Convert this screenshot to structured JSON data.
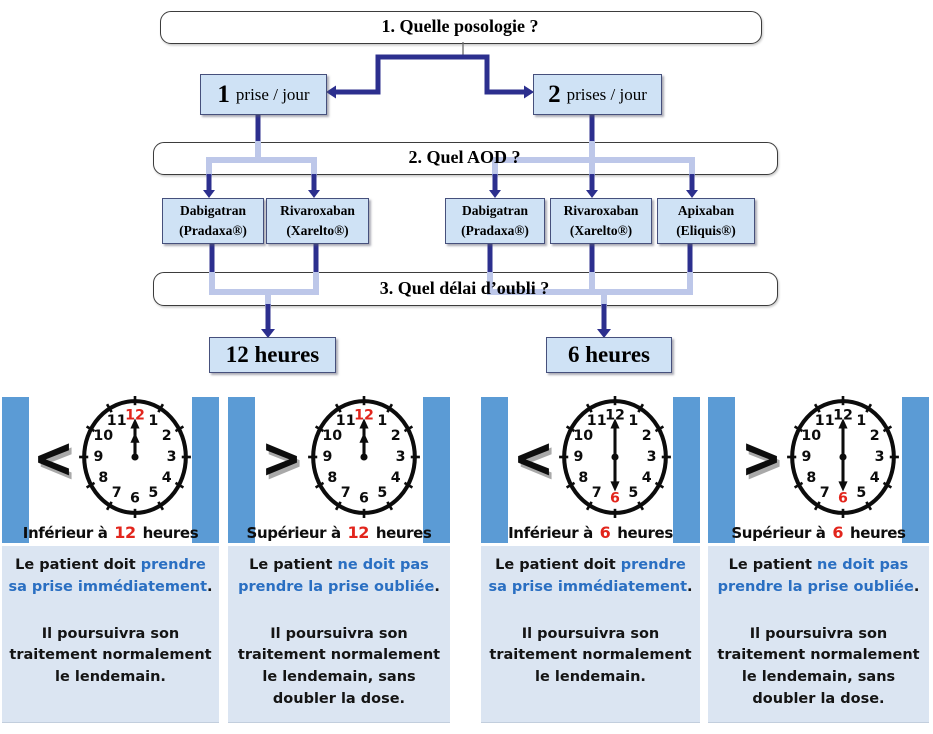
{
  "flowchart": {
    "q1": "1. Quelle posologie ?",
    "q2": "2. Quel AOD ?",
    "q3": "3. Quel délai d’oubli ?",
    "dose_left": {
      "num": "1",
      "rest": "prise / jour"
    },
    "dose_right": {
      "num": "2",
      "rest": "prises / jour"
    },
    "drugs": [
      {
        "line1": "Dabigatran",
        "line2": "(Pradaxa®)"
      },
      {
        "line1": "Rivaroxaban",
        "line2": "(Xarelto®)"
      },
      {
        "line1": "Dabigatran",
        "line2": "(Pradaxa®)"
      },
      {
        "line1": "Rivaroxaban",
        "line2": "(Xarelto®)"
      },
      {
        "line1": "Apixaban",
        "line2": "(Eliquis®)"
      }
    ],
    "result_left": "12 heures",
    "result_right": "6 heures"
  },
  "clock_numbers": [
    "12",
    "1",
    "2",
    "3",
    "4",
    "5",
    "6",
    "7",
    "8",
    "9",
    "10",
    "11"
  ],
  "panels": [
    {
      "symbol": "<",
      "clock": {
        "red": "12",
        "hands": "both-up"
      },
      "caption": {
        "prefix": "Inférieur à",
        "value": "12",
        "suffix": "heures"
      },
      "advice": {
        "lead": "Le patient doit",
        "highlight": "prendre sa prise immédiatement",
        "period": "."
      },
      "followup": "Il poursuivra son traitement normalement le lendemain."
    },
    {
      "symbol": ">",
      "clock": {
        "red": "12",
        "hands": "both-up"
      },
      "caption": {
        "prefix": "Supérieur à",
        "value": "12",
        "suffix": "heures"
      },
      "advice": {
        "lead": "Le patient",
        "highlight": "ne doit pas prendre la prise oubliée",
        "period": "."
      },
      "followup": "Il poursuivra son traitement normalement le lendemain, sans doubler la dose."
    },
    {
      "symbol": "<",
      "clock": {
        "red": "6",
        "hands": "up-down"
      },
      "caption": {
        "prefix": "Inférieur à",
        "value": "6",
        "suffix": "heures"
      },
      "advice": {
        "lead": "Le patient doit",
        "highlight": "prendre sa prise immédiatement",
        "period": "."
      },
      "followup": "Il poursuivra son traitement normalement le lendemain."
    },
    {
      "symbol": ">",
      "clock": {
        "red": "6",
        "hands": "up-down"
      },
      "caption": {
        "prefix": "Supérieur à",
        "value": "6",
        "suffix": "heures"
      },
      "advice": {
        "lead": "Le patient",
        "highlight": "ne doit pas prendre la prise oubliée",
        "period": "."
      },
      "followup": "Il poursuivra son traitement normalement le lendemain, sans doubler la dose."
    }
  ],
  "colors": {
    "navy": "#2c2f8e",
    "light_connector": "#bdc7e9",
    "box_fill": "#cfe2f5",
    "bar_blue": "#5b9bd5",
    "panel_bg": "#dbe5f2",
    "blue_text": "#2a6fc2",
    "red": "#e2251c"
  }
}
